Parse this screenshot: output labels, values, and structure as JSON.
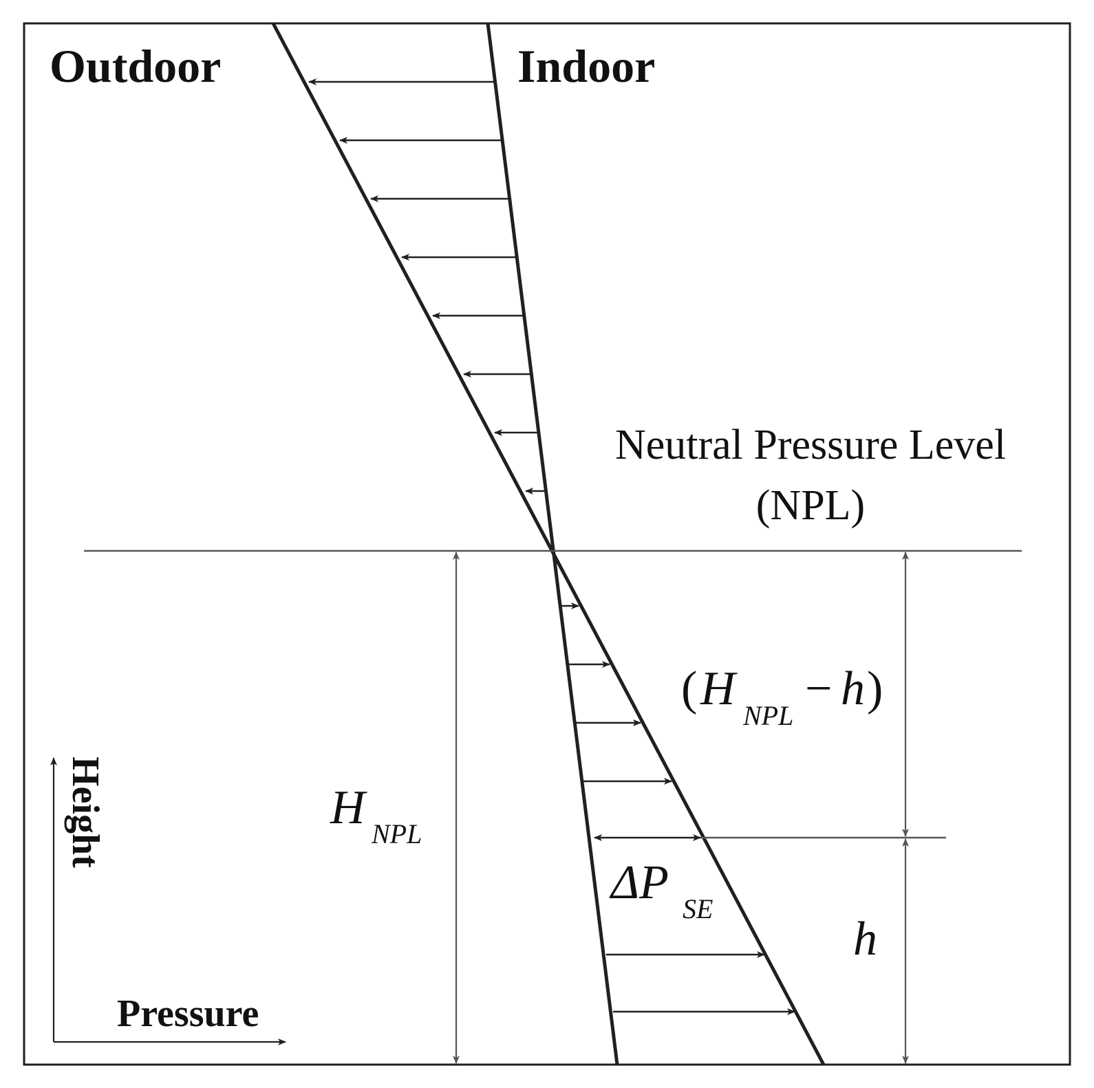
{
  "labels": {
    "outdoor": "Outdoor",
    "indoor": "Indoor",
    "npl_line1": "Neutral Pressure Level",
    "npl_line2": "(NPL)",
    "h_npl_main": "H",
    "h_npl_sub": "NPL",
    "diff_open": "(",
    "diff_h": "H",
    "diff_sub": "NPL",
    "diff_minus": "−",
    "diff_small_h": "h",
    "diff_close": ")",
    "delta_p_main": "ΔP",
    "delta_p_sub": "SE",
    "h": "h",
    "height_axis": "Height",
    "pressure_axis": "Pressure"
  },
  "colors": {
    "stroke": "#231f20",
    "thin": "#555555",
    "text": "#111111"
  }
}
